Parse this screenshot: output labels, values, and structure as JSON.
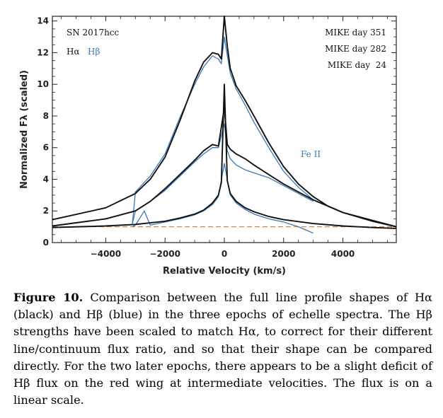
{
  "chart_data": {
    "type": "line",
    "xlabel": "Relative Velocity (km/s)",
    "ylabel": "Normalized Fλ (scaled)",
    "xlim": [
      -5800,
      5800
    ],
    "ylim": [
      0,
      14.3
    ],
    "x_ticks": [
      -4000,
      -2000,
      0,
      2000,
      4000
    ],
    "x_tick_labels": [
      "−4000",
      "−2000",
      "0",
      "2000",
      "4000"
    ],
    "y_ticks": [
      0,
      2,
      4,
      6,
      8,
      10,
      12,
      14
    ],
    "y_tick_labels": [
      "0",
      "2",
      "4",
      "6",
      "8",
      "10",
      "12",
      "14"
    ],
    "annotations": {
      "object": "SN 2017hcc",
      "ha_label": "Hα",
      "hb_label": "Hβ",
      "fe_label": "Fe II",
      "epochs": [
        "MIKE day 351",
        "MIKE day 282",
        "MIKE day  24"
      ]
    },
    "colors": {
      "halpha": "#111111",
      "hbeta": "#3a78b6",
      "continuum": "#c8702a"
    },
    "continuum_level": 1.0,
    "series": [
      {
        "name": "Hα",
        "epoch": "MIKE day 351",
        "color": "#111111",
        "x": [
          -5800,
          -4000,
          -3000,
          -2500,
          -2000,
          -1500,
          -1000,
          -700,
          -400,
          -200,
          -100,
          0,
          100,
          200,
          400,
          700,
          1000,
          1500,
          2000,
          2500,
          3000,
          3500,
          4000,
          5000,
          5800
        ],
        "y": [
          1.45,
          2.2,
          3.1,
          4.0,
          5.4,
          7.7,
          10.2,
          11.4,
          12.0,
          11.9,
          11.6,
          14.3,
          12.4,
          11.0,
          9.9,
          9.0,
          8.0,
          6.3,
          4.8,
          3.7,
          2.9,
          2.3,
          1.9,
          1.35,
          1.0
        ]
      },
      {
        "name": "Hα",
        "epoch": "MIKE day 282",
        "color": "#111111",
        "x": [
          -5800,
          -4000,
          -3000,
          -2500,
          -2000,
          -1500,
          -1000,
          -700,
          -400,
          -200,
          0,
          100,
          200,
          400,
          700,
          1000,
          1500,
          2000,
          2500,
          3000,
          3500,
          4000,
          5000,
          5800
        ],
        "y": [
          1.05,
          1.5,
          2.0,
          2.6,
          3.4,
          4.3,
          5.2,
          5.8,
          6.2,
          6.1,
          8.5,
          6.2,
          5.9,
          5.6,
          5.3,
          4.9,
          4.3,
          3.7,
          3.2,
          2.7,
          2.3,
          1.9,
          1.4,
          1.0
        ]
      },
      {
        "name": "Hα",
        "epoch": "MIKE day 24",
        "color": "#111111",
        "x": [
          -5800,
          -4000,
          -3000,
          -2000,
          -1500,
          -1000,
          -700,
          -400,
          -200,
          -100,
          0,
          100,
          200,
          400,
          700,
          1000,
          1500,
          2000,
          3000,
          4000,
          5000,
          5800
        ],
        "y": [
          0.95,
          1.05,
          1.15,
          1.35,
          1.55,
          1.8,
          2.05,
          2.5,
          3.0,
          3.8,
          10.0,
          3.9,
          3.1,
          2.6,
          2.2,
          1.95,
          1.65,
          1.45,
          1.2,
          1.05,
          0.95,
          0.9
        ]
      },
      {
        "name": "Hβ",
        "epoch": "MIKE day 351",
        "color": "#3a78b6",
        "x": [
          -3100,
          -3000,
          -2500,
          -2000,
          -1500,
          -1000,
          -700,
          -400,
          -200,
          -100,
          0,
          100,
          200,
          400,
          700,
          1000,
          1500,
          2000,
          2500,
          3000
        ],
        "y": [
          1.2,
          3.2,
          4.2,
          5.6,
          7.9,
          10.0,
          11.1,
          11.8,
          11.6,
          11.3,
          13.0,
          11.8,
          10.7,
          9.7,
          8.7,
          7.6,
          6.0,
          4.5,
          3.5,
          2.7
        ]
      },
      {
        "name": "Hβ",
        "epoch": "MIKE day 282",
        "color": "#3a78b6",
        "x": [
          -3100,
          -3000,
          -2500,
          -2000,
          -1500,
          -1000,
          -700,
          -400,
          -200,
          0,
          100,
          200,
          400,
          700,
          1000,
          1500,
          2000,
          2500,
          3000
        ],
        "y": [
          1.2,
          2.0,
          2.6,
          3.3,
          4.2,
          5.1,
          5.6,
          6.0,
          6.0,
          7.5,
          5.8,
          5.3,
          4.9,
          4.6,
          4.4,
          4.1,
          3.6,
          3.1,
          2.6
        ]
      },
      {
        "name": "Hβ",
        "epoch": "MIKE day 24",
        "color": "#3a78b6",
        "x": [
          -3100,
          -3000,
          -2700,
          -2500,
          -2000,
          -1500,
          -1000,
          -700,
          -400,
          -200,
          0,
          200,
          400,
          700,
          1000,
          1500,
          2000,
          2500,
          3000
        ],
        "y": [
          1.0,
          1.1,
          2.0,
          1.1,
          1.3,
          1.5,
          1.75,
          2.0,
          2.4,
          2.9,
          5.0,
          3.0,
          2.5,
          2.1,
          1.8,
          1.5,
          1.3,
          1.0,
          0.6
        ]
      }
    ]
  },
  "caption": {
    "label": "Figure 10.",
    "text": "Comparison between the full line profile shapes of Hα (black) and Hβ (blue) in the three epochs of echelle spectra. The Hβ strengths have been scaled to match Hα, to correct for their different line/continuum flux ratio, and so that their shape can be compared directly. For the two later epochs, there appears to be a slight deficit of Hβ flux on the red wing at intermediate velocities. The flux is on a linear scale."
  }
}
